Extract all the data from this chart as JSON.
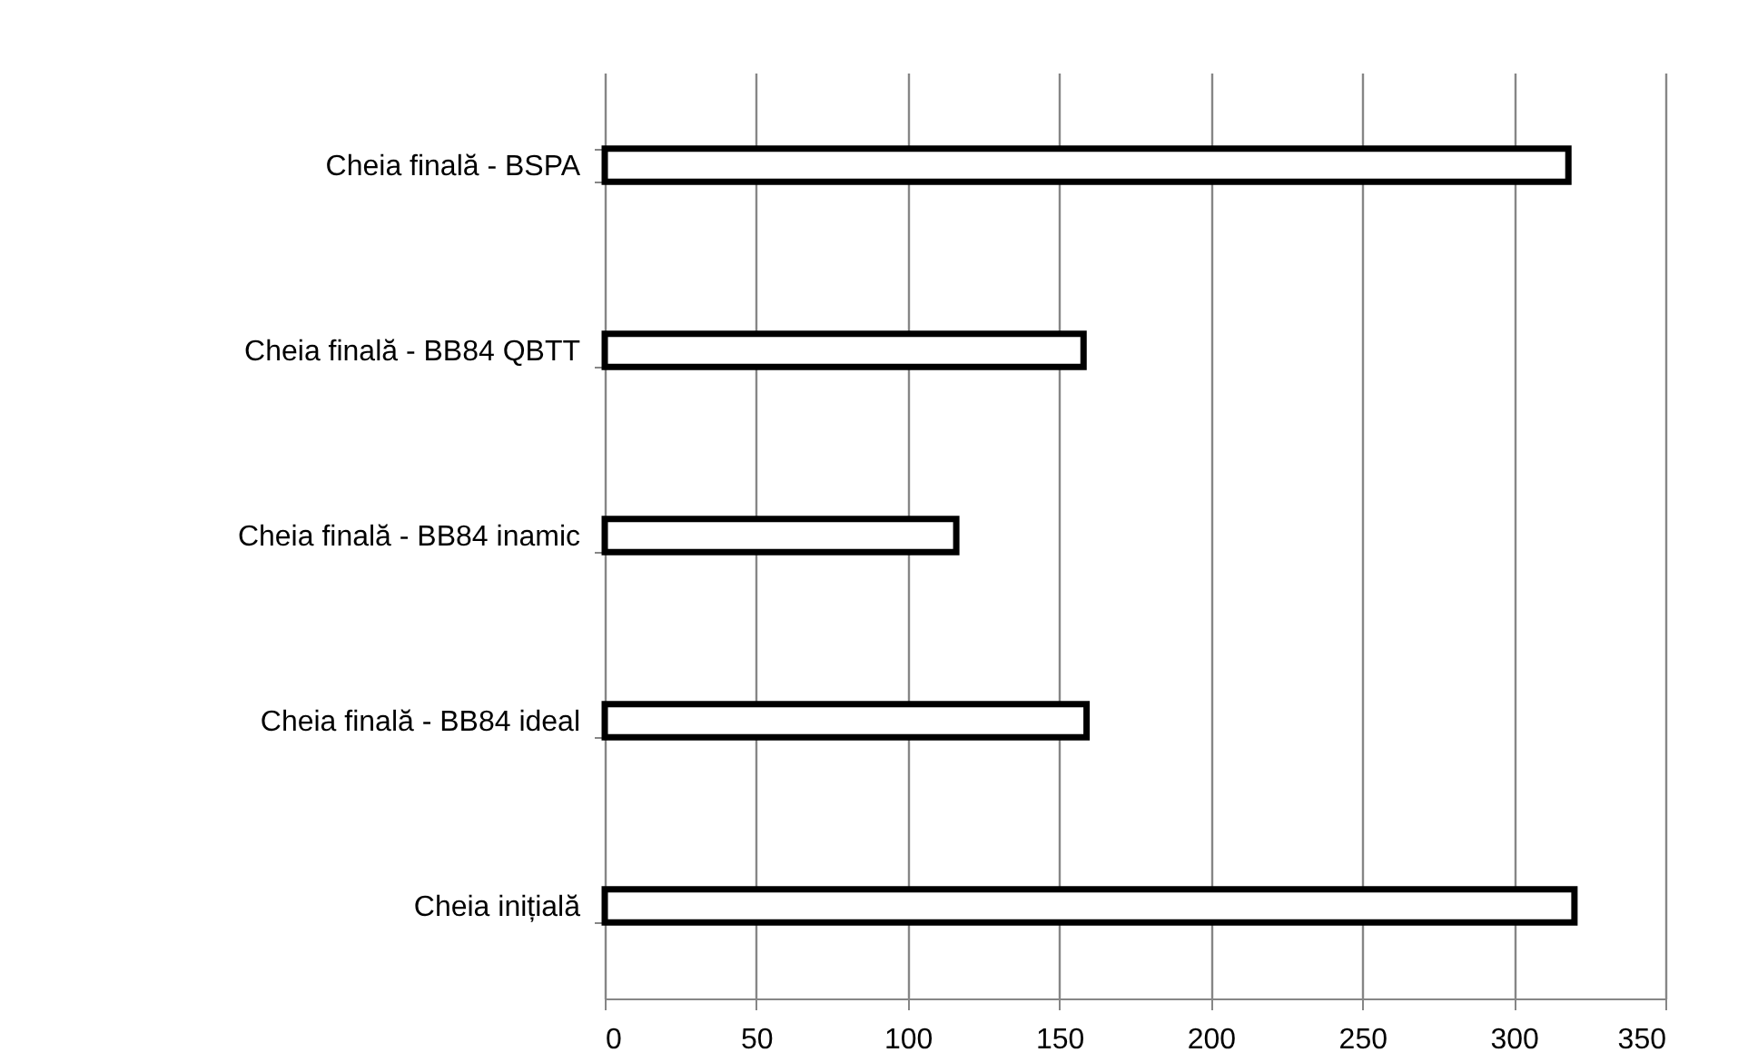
{
  "chart_data": {
    "type": "bar",
    "orientation": "horizontal",
    "categories": [
      "Cheia finală  - BSPA",
      "Cheia finală - BB84 QBTT",
      "Cheia finală - BB84 inamic",
      "Cheia finală - BB84 ideal",
      "Cheia inițială"
    ],
    "values": [
      318,
      158,
      116,
      159,
      320
    ],
    "color": "#ffffff",
    "xlim": [
      0,
      350
    ],
    "xticks": [
      0,
      50,
      100,
      150,
      200,
      250,
      300,
      350
    ],
    "grid": "x"
  }
}
